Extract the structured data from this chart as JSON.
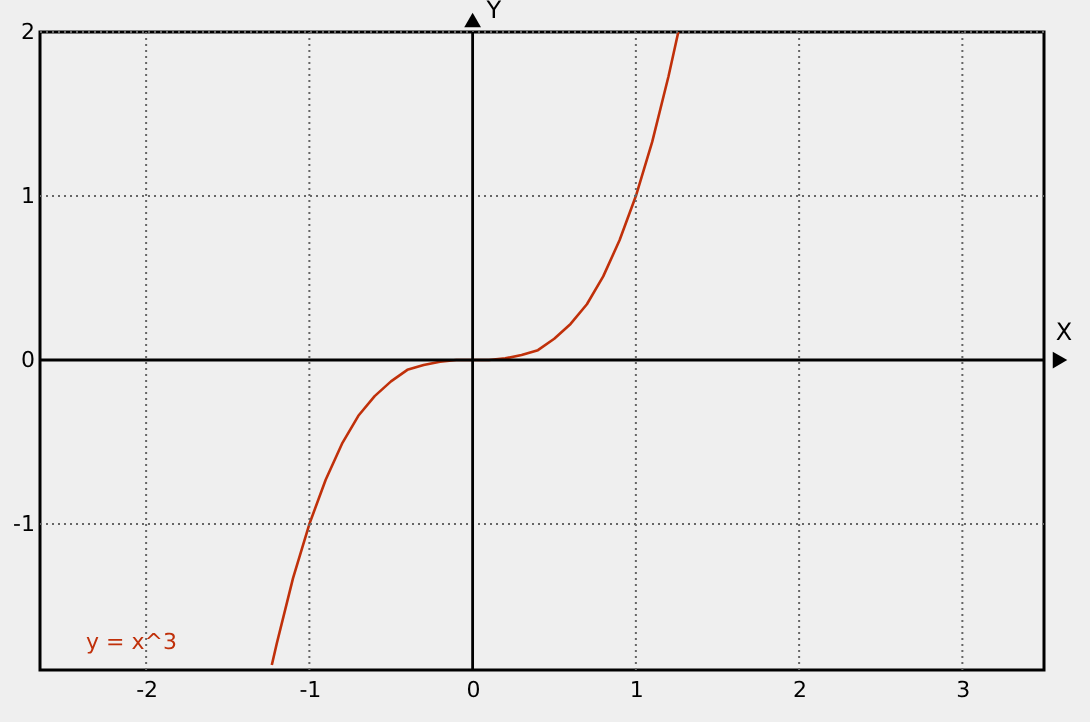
{
  "chart_data": {
    "type": "line",
    "xlabel": "X",
    "ylabel": "Y",
    "series": [
      {
        "name": "y = x^3",
        "color": "#c0300a",
        "x": [
          -1.23,
          -1.2,
          -1.1,
          -1.0,
          -0.9,
          -0.8,
          -0.7,
          -0.6,
          -0.5,
          -0.4,
          -0.3,
          -0.2,
          -0.1,
          0,
          0.1,
          0.2,
          0.3,
          0.4,
          0.5,
          0.6,
          0.7,
          0.8,
          0.9,
          1.0,
          1.1,
          1.2,
          1.26
        ],
        "values": [
          -1.86,
          -1.73,
          -1.33,
          -1.0,
          -0.73,
          -0.51,
          -0.34,
          -0.22,
          -0.13,
          -0.06,
          -0.03,
          -0.01,
          0,
          0,
          0,
          0.01,
          0.03,
          0.06,
          0.13,
          0.22,
          0.34,
          0.51,
          0.73,
          1.0,
          1.33,
          1.73,
          2.0
        ]
      }
    ],
    "xlim": [
      -2.65,
      3.5
    ],
    "ylim": [
      -1.89,
      2
    ],
    "xticks": [
      -2,
      -1,
      0,
      1,
      2,
      3
    ],
    "yticks": [
      -1,
      0,
      1,
      2
    ],
    "grid": true,
    "line_style": "solid",
    "marker": "none",
    "legend": "bottom left"
  }
}
